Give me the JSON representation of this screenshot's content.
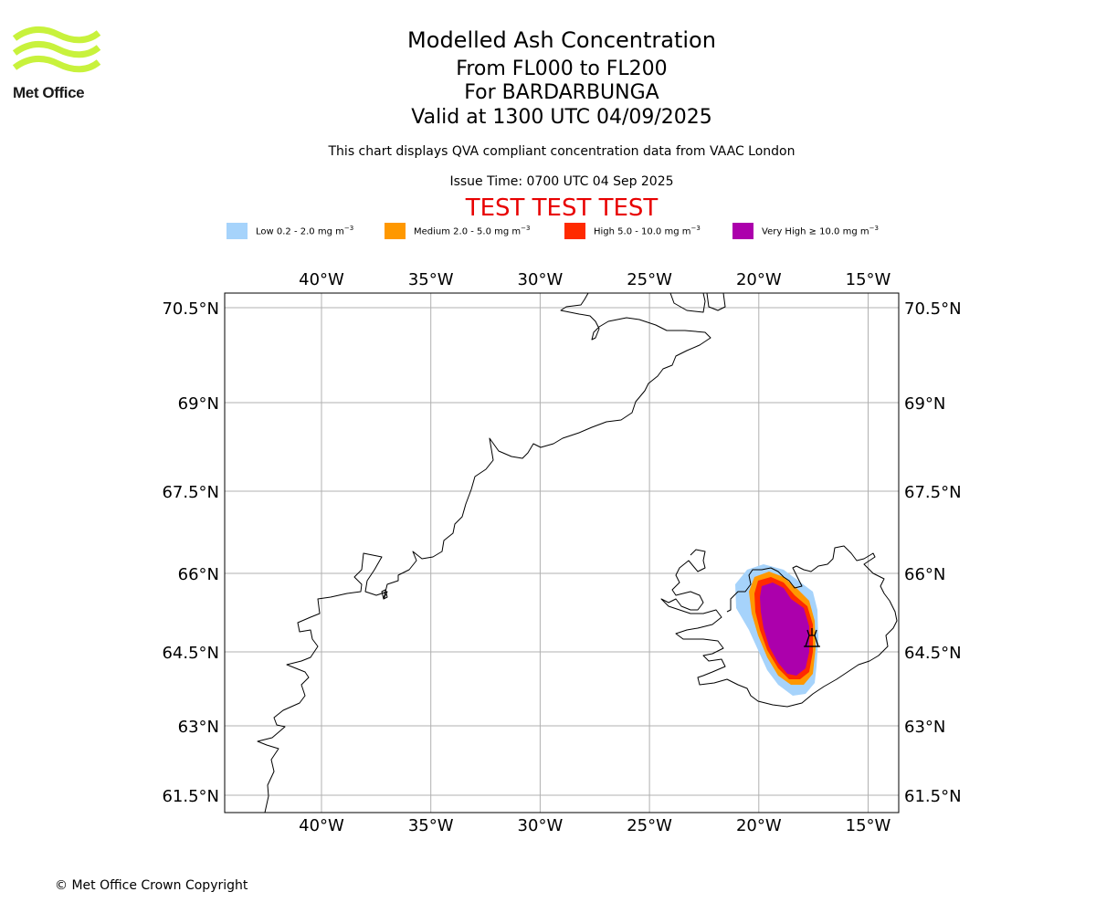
{
  "header": {
    "logo_text": "Met Office",
    "title": "Modelled Ash Concentration",
    "subtitle_levels": "From FL000 to FL200",
    "subtitle_volcano": "For BARDARBUNGA",
    "subtitle_valid": "Valid at 1300 UTC 04/09/2025",
    "note": "This chart displays QVA compliant concentration data from VAAC London",
    "issue_time": "Issue Time: 0700 UTC 04 Sep 2025",
    "test_banner": "TEST TEST TEST"
  },
  "legend": [
    {
      "name": "Low",
      "label": "Low 0.2 - 2.0 mg m",
      "color": "#a6d3fb"
    },
    {
      "name": "Medium",
      "label": "Medium 2.0 - 5.0 mg m",
      "color": "#ff9800"
    },
    {
      "name": "High",
      "label": "High 5.0 - 10.0 mg m",
      "color": "#ff2a00"
    },
    {
      "name": "Very High",
      "label": "Very High ≥ 10.0 mg m",
      "color": "#ac00ac"
    }
  ],
  "legend_unit_exponent": "−3",
  "map": {
    "lon_ticks": [
      {
        "value": -40,
        "label": "40°W"
      },
      {
        "value": -35,
        "label": "35°W"
      },
      {
        "value": -30,
        "label": "30°W"
      },
      {
        "value": -25,
        "label": "25°W"
      },
      {
        "value": -20,
        "label": "20°W"
      },
      {
        "value": -15,
        "label": "15°W"
      }
    ],
    "lat_ticks": [
      {
        "value": 70.5,
        "label": "70.5°N"
      },
      {
        "value": 69,
        "label": "69°N"
      },
      {
        "value": 67.5,
        "label": "67.5°N"
      },
      {
        "value": 66,
        "label": "66°N"
      },
      {
        "value": 64.5,
        "label": "64.5°N"
      },
      {
        "value": 63,
        "label": "63°N"
      },
      {
        "value": 61.5,
        "label": "61.5°N"
      }
    ],
    "volcano": {
      "name": "BARDARBUNGA",
      "lon": -17.5,
      "lat": 64.6
    },
    "colors": {
      "grid": "#b0b0b0",
      "coast": "#000000",
      "frame": "#000000"
    }
  },
  "footer": {
    "copyright": "© Met Office Crown Copyright"
  }
}
